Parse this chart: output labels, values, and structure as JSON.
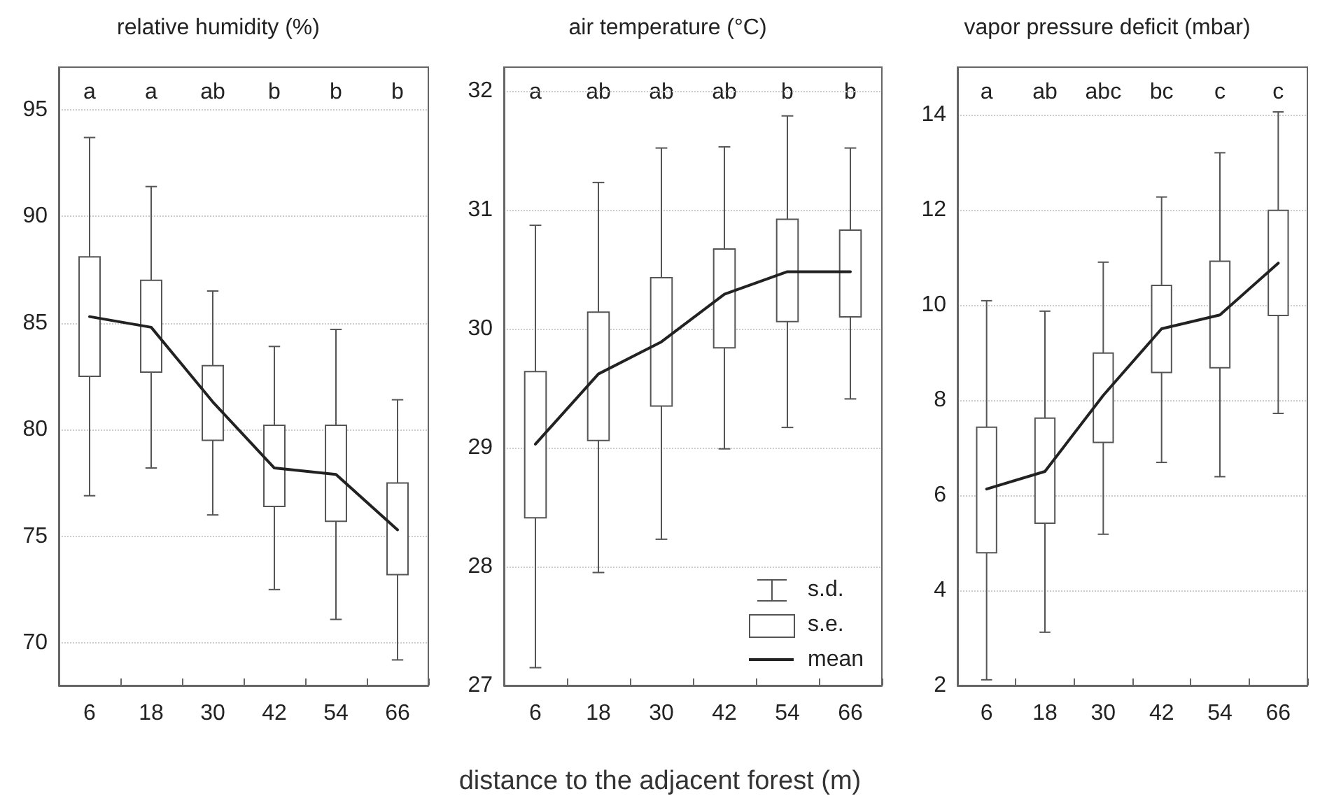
{
  "chart_data": [
    {
      "type": "box",
      "title": "relative humidity (%)",
      "categories": [
        "6",
        "18",
        "30",
        "42",
        "54",
        "66"
      ],
      "ylim": [
        68,
        97
      ],
      "yticks": [
        70,
        75,
        80,
        85,
        90,
        95
      ],
      "grid": "y",
      "series": [
        {
          "type": "box",
          "color": "#555555",
          "boxes": [
            {
              "low": 76.9,
              "q1": 82.5,
              "q3": 88.1,
              "high": 93.7
            },
            {
              "low": 78.2,
              "q1": 82.7,
              "q3": 87.0,
              "high": 91.4
            },
            {
              "low": 76.0,
              "q1": 79.5,
              "q3": 83.0,
              "high": 86.5
            },
            {
              "low": 72.5,
              "q1": 76.4,
              "q3": 80.2,
              "high": 83.9
            },
            {
              "low": 71.1,
              "q1": 75.7,
              "q3": 80.2,
              "high": 84.7
            },
            {
              "low": 69.2,
              "q1": 73.2,
              "q3": 77.5,
              "high": 81.4
            }
          ]
        },
        {
          "type": "line",
          "color": "#222222",
          "values": [
            85.3,
            84.8,
            81.3,
            78.2,
            77.9,
            75.3
          ]
        }
      ],
      "annotations": [
        "a",
        "a",
        "ab",
        "b",
        "b",
        "b"
      ]
    },
    {
      "type": "box",
      "title": "air temperature (°C)",
      "xlabel": "distance to the adjacent forest (m)",
      "categories": [
        "6",
        "18",
        "30",
        "42",
        "54",
        "66"
      ],
      "ylim": [
        27,
        32.2
      ],
      "yticks": [
        27,
        28,
        29,
        30,
        31,
        32
      ],
      "grid": "y",
      "legend": "bottom right",
      "series": [
        {
          "type": "box",
          "color": "#555555",
          "boxes": [
            {
              "low": 27.15,
              "q1": 28.41,
              "q3": 29.64,
              "high": 30.87
            },
            {
              "low": 27.95,
              "q1": 29.06,
              "q3": 30.14,
              "high": 31.23
            },
            {
              "low": 28.23,
              "q1": 29.35,
              "q3": 30.43,
              "high": 31.52
            },
            {
              "low": 28.99,
              "q1": 29.84,
              "q3": 30.67,
              "high": 31.53
            },
            {
              "low": 29.17,
              "q1": 30.06,
              "q3": 30.92,
              "high": 31.79
            },
            {
              "low": 29.41,
              "q1": 30.1,
              "q3": 30.83,
              "high": 31.52
            }
          ]
        },
        {
          "type": "line",
          "name": "mean",
          "color": "#222222",
          "values": [
            29.03,
            29.62,
            29.89,
            30.29,
            30.48,
            30.48
          ]
        }
      ],
      "annotations": [
        "a",
        "ab",
        "ab",
        "ab",
        "b",
        "b",
        "s.d.",
        "s.e."
      ]
    },
    {
      "type": "box",
      "title": "vapor pressure deficit (mbar)",
      "categories": [
        "6",
        "18",
        "30",
        "42",
        "54",
        "66"
      ],
      "ylim": [
        2,
        15
      ],
      "yticks": [
        2,
        4,
        6,
        8,
        10,
        12,
        14
      ],
      "grid": "y",
      "series": [
        {
          "type": "box",
          "color": "#555555",
          "boxes": [
            {
              "low": 2.12,
              "q1": 4.79,
              "q3": 7.43,
              "high": 10.09
            },
            {
              "low": 3.12,
              "q1": 5.41,
              "q3": 7.62,
              "high": 9.87
            },
            {
              "low": 5.18,
              "q1": 7.11,
              "q3": 8.99,
              "high": 10.9
            },
            {
              "low": 6.69,
              "q1": 8.58,
              "q3": 10.41,
              "high": 12.27
            },
            {
              "low": 6.39,
              "q1": 8.68,
              "q3": 10.92,
              "high": 13.2
            },
            {
              "low": 7.72,
              "q1": 9.78,
              "q3": 11.99,
              "high": 14.06
            }
          ]
        },
        {
          "type": "line",
          "color": "#222222",
          "values": [
            6.13,
            6.5,
            8.1,
            9.5,
            9.79,
            10.88
          ]
        }
      ],
      "annotations": [
        "a",
        "ab",
        "abc",
        "bc",
        "c",
        "c"
      ]
    }
  ]
}
